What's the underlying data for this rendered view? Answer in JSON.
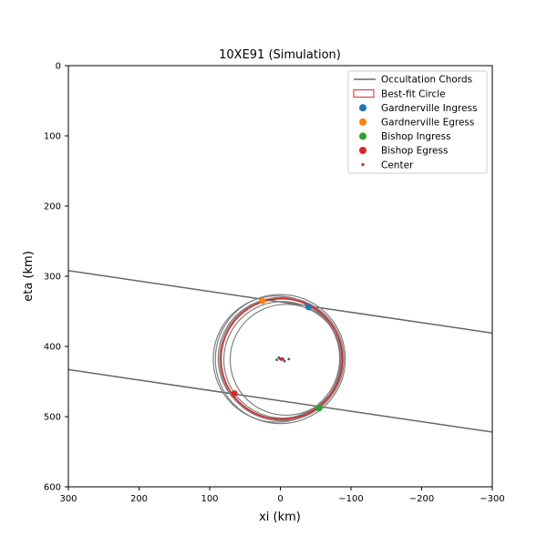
{
  "chart_data": {
    "type": "scatter",
    "title": "10XE91 (Simulation)",
    "xlabel": "xi (km)",
    "ylabel": "eta (km)",
    "xlim": [
      300,
      -300
    ],
    "ylim": [
      600,
      0
    ],
    "xticks": [
      300,
      200,
      100,
      0,
      -100,
      -200,
      -300
    ],
    "yticks": [
      0,
      100,
      200,
      300,
      400,
      500,
      600
    ],
    "xtick_labels": [
      "300",
      "200",
      "100",
      "0",
      "−100",
      "−200",
      "−300"
    ],
    "ytick_labels": [
      "0",
      "100",
      "200",
      "300",
      "400",
      "500",
      "600"
    ],
    "grid": false,
    "legend_position": "top-right",
    "chords": [
      {
        "x1": 300,
        "y1": 292,
        "x2": -300,
        "y2": 381
      },
      {
        "x1": 300,
        "y1": 433,
        "x2": -300,
        "y2": 522
      }
    ],
    "sample_circles": [
      {
        "cx": -2,
        "cy": 418,
        "r": 88
      },
      {
        "cx": 5,
        "cy": 418,
        "r": 90
      },
      {
        "cx": -3,
        "cy": 419,
        "r": 83
      },
      {
        "cx": 0,
        "cy": 418,
        "r": 92
      },
      {
        "cx": -8,
        "cy": 419,
        "r": 79
      },
      {
        "cx": 2,
        "cy": 417,
        "r": 86
      }
    ],
    "sample_centers": [
      {
        "x": 5,
        "y": 419
      },
      {
        "x": 0,
        "y": 418
      },
      {
        "x": -4,
        "y": 418
      },
      {
        "x": -12,
        "y": 418
      },
      {
        "x": -6,
        "y": 421
      },
      {
        "x": 2,
        "y": 416
      }
    ],
    "best_fit_circle": {
      "cx": -2,
      "cy": 418,
      "r": 86
    },
    "series": [
      {
        "name": "Gardnerville Ingress",
        "color": "#1f77b4",
        "points": [
          {
            "x": -40,
            "y": 344
          }
        ]
      },
      {
        "name": "Gardnerville Egress",
        "color": "#ff7f0e",
        "points": [
          {
            "x": 25,
            "y": 335
          }
        ]
      },
      {
        "name": "Bishop Ingress",
        "color": "#2ca02c",
        "points": [
          {
            "x": -55,
            "y": 488
          }
        ]
      },
      {
        "name": "Bishop Egress",
        "color": "#d62728",
        "points": [
          {
            "x": 65,
            "y": 467
          }
        ]
      },
      {
        "name": "Center",
        "color": "#d62728",
        "points": [
          {
            "x": -2,
            "y": 418
          }
        ]
      }
    ],
    "legend": {
      "chords_label": "Occultation Chords",
      "bestfit_label": "Best-fit Circle",
      "center_label": "Center"
    },
    "colors": {
      "chord": "#666666",
      "sample_circle": "#808080",
      "best_fit": "#d62728"
    }
  }
}
